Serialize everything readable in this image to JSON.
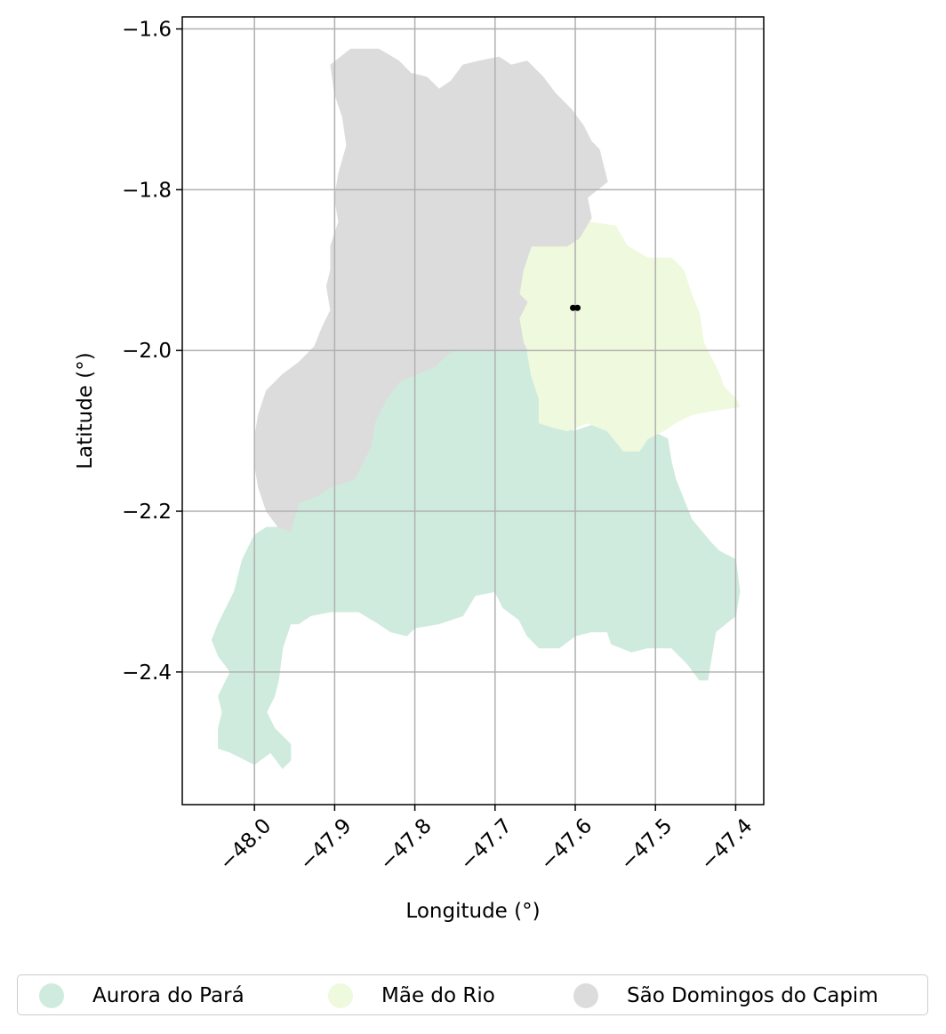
{
  "chart_data": {
    "type": "map",
    "title": "",
    "xlabel": "Longitude (°)",
    "ylabel": "Latitude (°)",
    "xlim": [
      -48.09,
      -47.365
    ],
    "ylim": [
      -2.565,
      -1.585
    ],
    "xticks": [
      -48.0,
      -47.9,
      -47.8,
      -47.7,
      -47.6,
      -47.5,
      -47.4
    ],
    "xtick_labels": [
      "−48.0",
      "−47.9",
      "−47.8",
      "−47.7",
      "−47.6",
      "−47.5",
      "−47.4"
    ],
    "yticks": [
      -1.6,
      -1.8,
      -2.0,
      -2.2,
      -2.4
    ],
    "ytick_labels": [
      "−1.6",
      "−1.8",
      "−2.0",
      "−2.2",
      "−2.4"
    ],
    "grid": true,
    "legend_position": "bottom-center",
    "regions": [
      {
        "name": "Aurora do Pará",
        "color": "#cfebde",
        "outline": [
          [
            -47.75,
            -2.0
          ],
          [
            -47.66,
            -2.0
          ],
          [
            -47.655,
            -2.03
          ],
          [
            -47.645,
            -2.06
          ],
          [
            -47.645,
            -2.09
          ],
          [
            -47.63,
            -2.095
          ],
          [
            -47.6,
            -2.1
          ],
          [
            -47.57,
            -2.09
          ],
          [
            -47.54,
            -2.12
          ],
          [
            -47.52,
            -2.12
          ],
          [
            -47.51,
            -2.09
          ],
          [
            -47.505,
            -2.1
          ],
          [
            -47.485,
            -2.11
          ],
          [
            -47.48,
            -2.14
          ],
          [
            -47.475,
            -2.16
          ],
          [
            -47.455,
            -2.21
          ],
          [
            -47.43,
            -2.24
          ],
          [
            -47.42,
            -2.25
          ],
          [
            -47.4,
            -2.26
          ],
          [
            -47.395,
            -2.3
          ],
          [
            -47.4,
            -2.33
          ],
          [
            -47.425,
            -2.35
          ],
          [
            -47.43,
            -2.38
          ],
          [
            -47.435,
            -2.41
          ],
          [
            -47.445,
            -2.41
          ],
          [
            -47.46,
            -2.39
          ],
          [
            -47.48,
            -2.37
          ],
          [
            -47.51,
            -2.37
          ],
          [
            -47.53,
            -2.375
          ],
          [
            -47.555,
            -2.365
          ],
          [
            -47.56,
            -2.35
          ],
          [
            -47.58,
            -2.35
          ],
          [
            -47.6,
            -2.355
          ],
          [
            -47.62,
            -2.37
          ],
          [
            -47.645,
            -2.37
          ],
          [
            -47.66,
            -2.355
          ],
          [
            -47.67,
            -2.335
          ],
          [
            -47.69,
            -2.32
          ],
          [
            -47.7,
            -2.3
          ],
          [
            -47.725,
            -2.305
          ],
          [
            -47.74,
            -2.33
          ],
          [
            -47.77,
            -2.34
          ],
          [
            -47.8,
            -2.345
          ],
          [
            -47.81,
            -2.355
          ],
          [
            -47.83,
            -2.35
          ],
          [
            -47.845,
            -2.34
          ],
          [
            -47.87,
            -2.325
          ],
          [
            -47.905,
            -2.325
          ],
          [
            -47.93,
            -2.33
          ],
          [
            -47.945,
            -2.34
          ],
          [
            -47.955,
            -2.34
          ],
          [
            -47.965,
            -2.37
          ],
          [
            -47.97,
            -2.41
          ],
          [
            -47.975,
            -2.43
          ],
          [
            -47.985,
            -2.45
          ],
          [
            -47.975,
            -2.47
          ],
          [
            -47.955,
            -2.49
          ],
          [
            -47.955,
            -2.51
          ],
          [
            -47.965,
            -2.52
          ],
          [
            -47.98,
            -2.5
          ],
          [
            -48.0,
            -2.515
          ],
          [
            -48.03,
            -2.5
          ],
          [
            -48.045,
            -2.495
          ],
          [
            -48.045,
            -2.47
          ],
          [
            -48.04,
            -2.45
          ],
          [
            -48.045,
            -2.43
          ],
          [
            -48.035,
            -2.41
          ],
          [
            -48.03,
            -2.4
          ],
          [
            -48.045,
            -2.38
          ],
          [
            -48.053,
            -2.36
          ],
          [
            -48.045,
            -2.34
          ],
          [
            -48.035,
            -2.32
          ],
          [
            -48.025,
            -2.3
          ],
          [
            -48.02,
            -2.28
          ],
          [
            -48.015,
            -2.26
          ],
          [
            -48.0,
            -2.23
          ],
          [
            -47.985,
            -2.22
          ],
          [
            -47.965,
            -2.22
          ],
          [
            -47.955,
            -2.225
          ],
          [
            -47.945,
            -2.19
          ],
          [
            -47.92,
            -2.18
          ],
          [
            -47.905,
            -2.17
          ],
          [
            -47.875,
            -2.16
          ],
          [
            -47.855,
            -2.12
          ],
          [
            -47.85,
            -2.09
          ],
          [
            -47.835,
            -2.06
          ],
          [
            -47.82,
            -2.04
          ],
          [
            -47.8,
            -2.03
          ],
          [
            -47.775,
            -2.02
          ],
          [
            -47.76,
            -2.005
          ]
        ]
      },
      {
        "name": "Mãe do Rio",
        "color": "#eff9dd",
        "outline": [
          [
            -47.655,
            -1.87
          ],
          [
            -47.64,
            -1.87
          ],
          [
            -47.62,
            -1.85
          ],
          [
            -47.6,
            -1.855
          ],
          [
            -47.585,
            -1.84
          ],
          [
            -47.55,
            -1.845
          ],
          [
            -47.535,
            -1.87
          ],
          [
            -47.51,
            -1.885
          ],
          [
            -47.48,
            -1.885
          ],
          [
            -47.465,
            -1.9
          ],
          [
            -47.455,
            -1.93
          ],
          [
            -47.445,
            -1.955
          ],
          [
            -47.44,
            -1.99
          ],
          [
            -47.43,
            -2.01
          ],
          [
            -47.42,
            -2.03
          ],
          [
            -47.415,
            -2.045
          ],
          [
            -47.4,
            -2.06
          ],
          [
            -47.395,
            -2.07
          ],
          [
            -47.43,
            -2.075
          ],
          [
            -47.455,
            -2.08
          ],
          [
            -47.475,
            -2.09
          ],
          [
            -47.49,
            -2.1
          ],
          [
            -47.51,
            -2.11
          ],
          [
            -47.52,
            -2.125
          ],
          [
            -47.54,
            -2.125
          ],
          [
            -47.56,
            -2.1
          ],
          [
            -47.585,
            -2.09
          ],
          [
            -47.61,
            -2.1
          ],
          [
            -47.63,
            -2.095
          ],
          [
            -47.645,
            -2.09
          ],
          [
            -47.645,
            -2.06
          ],
          [
            -47.655,
            -2.03
          ],
          [
            -47.66,
            -2.0
          ],
          [
            -47.665,
            -1.99
          ],
          [
            -47.67,
            -1.96
          ],
          [
            -47.66,
            -1.94
          ],
          [
            -47.67,
            -1.93
          ],
          [
            -47.665,
            -1.9
          ]
        ]
      },
      {
        "name": "São Domingos do Capim",
        "color": "#dcdcdc",
        "outline": [
          [
            -47.905,
            -1.645
          ],
          [
            -47.88,
            -1.625
          ],
          [
            -47.845,
            -1.625
          ],
          [
            -47.82,
            -1.64
          ],
          [
            -47.805,
            -1.655
          ],
          [
            -47.785,
            -1.66
          ],
          [
            -47.77,
            -1.675
          ],
          [
            -47.755,
            -1.665
          ],
          [
            -47.74,
            -1.645
          ],
          [
            -47.72,
            -1.64
          ],
          [
            -47.695,
            -1.635
          ],
          [
            -47.68,
            -1.645
          ],
          [
            -47.66,
            -1.64
          ],
          [
            -47.64,
            -1.66
          ],
          [
            -47.625,
            -1.68
          ],
          [
            -47.605,
            -1.7
          ],
          [
            -47.59,
            -1.72
          ],
          [
            -47.58,
            -1.74
          ],
          [
            -47.57,
            -1.75
          ],
          [
            -47.56,
            -1.79
          ],
          [
            -47.585,
            -1.81
          ],
          [
            -47.58,
            -1.835
          ],
          [
            -47.595,
            -1.86
          ],
          [
            -47.61,
            -1.87
          ],
          [
            -47.655,
            -1.87
          ],
          [
            -47.665,
            -1.9
          ],
          [
            -47.67,
            -1.93
          ],
          [
            -47.66,
            -1.94
          ],
          [
            -47.67,
            -1.96
          ],
          [
            -47.665,
            -1.99
          ],
          [
            -47.66,
            -2.0
          ],
          [
            -47.75,
            -2.0
          ],
          [
            -47.76,
            -2.005
          ],
          [
            -47.775,
            -2.02
          ],
          [
            -47.8,
            -2.03
          ],
          [
            -47.82,
            -2.04
          ],
          [
            -47.835,
            -2.06
          ],
          [
            -47.85,
            -2.09
          ],
          [
            -47.855,
            -2.12
          ],
          [
            -47.875,
            -2.16
          ],
          [
            -47.905,
            -2.17
          ],
          [
            -47.92,
            -2.18
          ],
          [
            -47.945,
            -2.19
          ],
          [
            -47.955,
            -2.225
          ],
          [
            -47.97,
            -2.22
          ],
          [
            -47.985,
            -2.2
          ],
          [
            -47.995,
            -2.17
          ],
          [
            -48.0,
            -2.14
          ],
          [
            -48.0,
            -2.11
          ],
          [
            -47.995,
            -2.08
          ],
          [
            -47.985,
            -2.05
          ],
          [
            -47.965,
            -2.03
          ],
          [
            -47.945,
            -2.015
          ],
          [
            -47.925,
            -1.995
          ],
          [
            -47.915,
            -1.97
          ],
          [
            -47.905,
            -1.95
          ],
          [
            -47.91,
            -1.92
          ],
          [
            -47.905,
            -1.9
          ],
          [
            -47.905,
            -1.87
          ],
          [
            -47.895,
            -1.84
          ],
          [
            -47.9,
            -1.81
          ],
          [
            -47.895,
            -1.78
          ],
          [
            -47.885,
            -1.745
          ],
          [
            -47.89,
            -1.71
          ],
          [
            -47.9,
            -1.68
          ]
        ]
      }
    ],
    "markers": [
      {
        "lon": -47.6,
        "lat": -1.947,
        "color": "#000000"
      }
    ]
  },
  "legend": {
    "items": [
      {
        "label": "Aurora do Pará",
        "color": "#cfebde"
      },
      {
        "label": "Mãe do Rio",
        "color": "#eff9dd"
      },
      {
        "label": "São Domingos do Capim",
        "color": "#dcdcdc"
      }
    ]
  }
}
